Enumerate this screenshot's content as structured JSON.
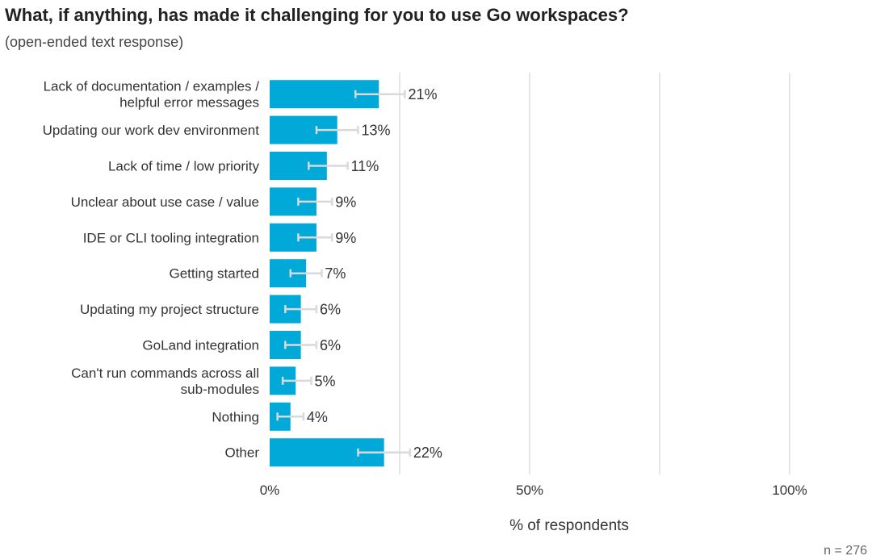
{
  "colors": {
    "bar": "#00a9d8",
    "error_bar": "#d9d9d9",
    "gridline": "#e6e6e6",
    "text": "#333333"
  },
  "chart_data": {
    "type": "bar",
    "orientation": "horizontal",
    "title": "What, if anything, has made it challenging for you to use Go workspaces?",
    "subtitle": "(open-ended text response)",
    "xlabel": "% of respondents",
    "ylabel": "",
    "xlim": [
      0,
      100
    ],
    "x_ticks": [
      {
        "value": 0,
        "label": "0%"
      },
      {
        "value": 50,
        "label": "50%"
      },
      {
        "value": 100,
        "label": "100%"
      }
    ],
    "gridlines": [
      25,
      50,
      75,
      100
    ],
    "n_label": "n =  276",
    "categories": [
      {
        "label": [
          "Lack of documentation / examples /",
          "helpful error messages"
        ],
        "value": 21,
        "display": "21%",
        "ci": [
          16.5,
          26
        ]
      },
      {
        "label": [
          "Updating our work dev environment"
        ],
        "value": 13,
        "display": "13%",
        "ci": [
          9,
          17
        ]
      },
      {
        "label": [
          "Lack of time / low priority"
        ],
        "value": 11,
        "display": "11%",
        "ci": [
          7.5,
          15
        ]
      },
      {
        "label": [
          "Unclear about use case / value"
        ],
        "value": 9,
        "display": "9%",
        "ci": [
          5.5,
          12
        ]
      },
      {
        "label": [
          "IDE or CLI tooling integration"
        ],
        "value": 9,
        "display": "9%",
        "ci": [
          5.5,
          12
        ]
      },
      {
        "label": [
          "Getting started"
        ],
        "value": 7,
        "display": "7%",
        "ci": [
          4,
          10
        ]
      },
      {
        "label": [
          "Updating my project structure"
        ],
        "value": 6,
        "display": "6%",
        "ci": [
          3,
          9
        ]
      },
      {
        "label": [
          "GoLand integration"
        ],
        "value": 6,
        "display": "6%",
        "ci": [
          3,
          9
        ]
      },
      {
        "label": [
          "Can't run commands across all",
          "sub-modules"
        ],
        "value": 5,
        "display": "5%",
        "ci": [
          2.5,
          8
        ]
      },
      {
        "label": [
          "Nothing"
        ],
        "value": 4,
        "display": "4%",
        "ci": [
          1.5,
          6.5
        ]
      },
      {
        "label": [
          "Other"
        ],
        "value": 22,
        "display": "22%",
        "ci": [
          17,
          27
        ]
      }
    ]
  }
}
